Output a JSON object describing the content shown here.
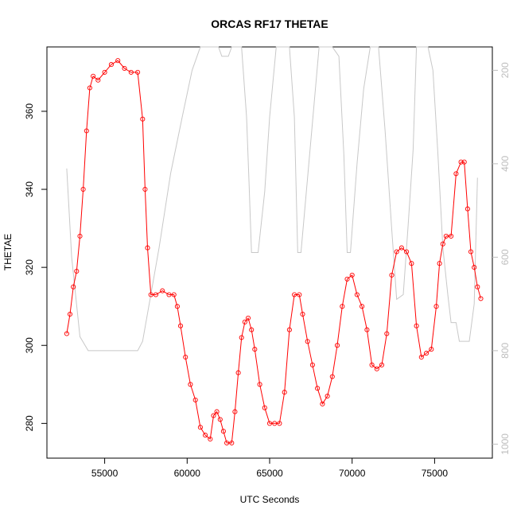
{
  "chart_data": {
    "type": "line",
    "title": "ORCAS RF17 THETAE",
    "xlabel": "UTC Seconds",
    "ylabel": "THETAE",
    "xlim": [
      51500,
      78500
    ],
    "ylim": [
      271.1,
      376.5
    ],
    "x_ticks": [
      55000,
      60000,
      65000,
      70000,
      75000
    ],
    "y_ticks": [
      280,
      300,
      320,
      340,
      360
    ],
    "y2_reversed": true,
    "y2lim": [
      150,
      1030
    ],
    "y2_ticks": [
      200,
      400,
      600,
      800,
      1000
    ],
    "grid": false,
    "colors": {
      "thetae": "#ff0000",
      "secondary": "#c8c8c8",
      "tick_right": "#bdbdbd"
    },
    "series": [
      {
        "marker": "open-circle",
        "x": [
          52700,
          52900,
          53100,
          53300,
          53500,
          53700,
          53900,
          54100,
          54300,
          54600,
          55000,
          55400,
          55800,
          56200,
          56600,
          57000,
          57300,
          57450,
          57600,
          57800,
          58100,
          58500,
          58900,
          59200,
          59400,
          59600,
          59900,
          60200,
          60500,
          60800,
          61100,
          61400,
          61600,
          61800,
          62000,
          62200,
          62400,
          62700,
          62900,
          63100,
          63300,
          63500,
          63700,
          63900,
          64100,
          64400,
          64700,
          65000,
          65300,
          65600,
          65900,
          66200,
          66500,
          66800,
          67000,
          67300,
          67600,
          67900,
          68200,
          68500,
          68800,
          69100,
          69400,
          69700,
          70000,
          70300,
          70600,
          70900,
          71200,
          71500,
          71800,
          72100,
          72400,
          72700,
          73000,
          73300,
          73600,
          73900,
          74200,
          74500,
          74800,
          75100,
          75300,
          75500,
          75700,
          76000,
          76300,
          76600,
          76800,
          77000,
          77200,
          77400,
          77600,
          77800
        ],
        "y": [
          303,
          308,
          315,
          319,
          328,
          340,
          355,
          366,
          369,
          368,
          370,
          372,
          373,
          371,
          370,
          370,
          358,
          340,
          325,
          313,
          313,
          314,
          313,
          313,
          310,
          305,
          297,
          290,
          286,
          279,
          277,
          276,
          282,
          283,
          281,
          278,
          275,
          275,
          283,
          293,
          302,
          306,
          307,
          304,
          299,
          290,
          284,
          280,
          280,
          280,
          288,
          304,
          313,
          313,
          308,
          301,
          295,
          289,
          285,
          287,
          292,
          300,
          310,
          317,
          318,
          313,
          310,
          304,
          295,
          294,
          295,
          303,
          318,
          324,
          325,
          324,
          321,
          305,
          297,
          298,
          299,
          310,
          321,
          326,
          328,
          328,
          344,
          347,
          347,
          335,
          324,
          320,
          315,
          312
        ]
      },
      {
        "axis": "right",
        "x": [
          52700,
          53000,
          53500,
          54000,
          55000,
          56000,
          57000,
          57300,
          57700,
          58300,
          59000,
          59700,
          60300,
          60800,
          61300,
          61600,
          61900,
          62100,
          62300,
          62500,
          62700,
          63000,
          63300,
          63600,
          63750,
          63900,
          64300,
          64700,
          65000,
          65400,
          65800,
          66200,
          66500,
          66700,
          66900,
          67300,
          67700,
          68000,
          68400,
          68800,
          69200,
          69500,
          69700,
          69900,
          70300,
          70700,
          71100,
          71300,
          71600,
          72000,
          72400,
          72700,
          73100,
          73400,
          73700,
          73900,
          74200,
          74600,
          74900,
          75200,
          75500,
          75800,
          76000,
          76300,
          76500,
          76700,
          76900,
          77100,
          77400,
          77600
        ],
        "y": [
          410,
          600,
          770,
          800,
          800,
          800,
          800,
          780,
          700,
          580,
          420,
          300,
          200,
          120,
          60,
          30,
          20,
          170,
          170,
          170,
          100,
          20,
          130,
          300,
          440,
          590,
          590,
          460,
          300,
          120,
          20,
          100,
          300,
          590,
          590,
          430,
          270,
          120,
          20,
          20,
          170,
          380,
          590,
          590,
          400,
          240,
          80,
          20,
          110,
          330,
          540,
          690,
          680,
          530,
          370,
          150,
          20,
          40,
          200,
          380,
          580,
          680,
          740,
          740,
          780,
          780,
          780,
          780,
          700,
          430
        ]
      }
    ]
  }
}
